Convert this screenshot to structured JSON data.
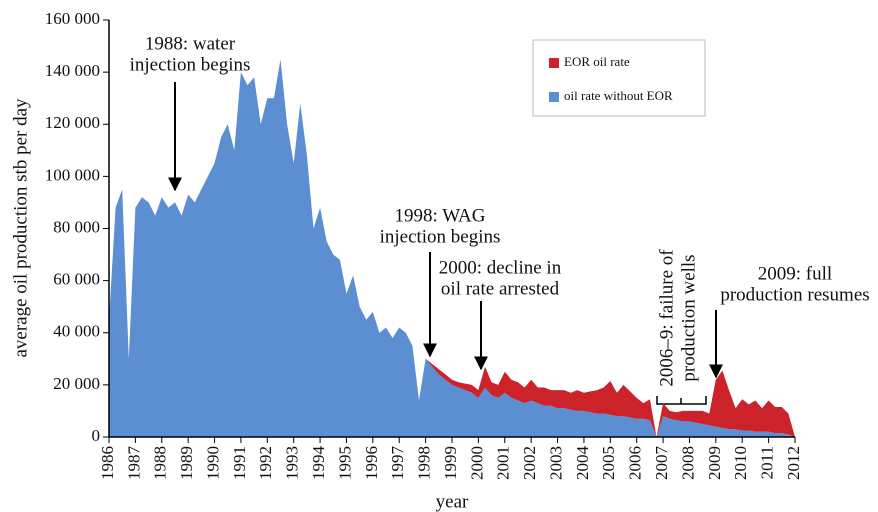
{
  "chart_data": {
    "type": "stacked-area",
    "x_label": "year",
    "y_label": "average oil production stb per day",
    "xlim": [
      1986,
      2012
    ],
    "xticks": [
      1986,
      1987,
      1988,
      1989,
      1990,
      1991,
      1992,
      1993,
      1994,
      1995,
      1996,
      1997,
      1998,
      1999,
      2000,
      2001,
      2002,
      2003,
      2004,
      2005,
      2006,
      2007,
      2008,
      2009,
      2010,
      2011,
      2012
    ],
    "ylim": [
      0,
      160000
    ],
    "yticks": [
      0,
      {
        "value": 20000,
        "label": "20 000"
      },
      {
        "value": 40000,
        "label": "40 000"
      },
      {
        "value": 60000,
        "label": "60 000"
      },
      {
        "value": 80000,
        "label": "80 000"
      },
      {
        "value": 100000,
        "label": "100 000"
      },
      {
        "value": 120000,
        "label": "120 000"
      },
      {
        "value": 140000,
        "label": "140 000"
      },
      {
        "value": 160000,
        "label": "160 000"
      }
    ],
    "grid": false,
    "legend": "upper right",
    "x": [
      1986,
      1986.25,
      1986.5,
      1986.75,
      1987,
      1987.25,
      1987.5,
      1987.75,
      1988,
      1988.25,
      1988.5,
      1988.75,
      1989,
      1989.25,
      1989.5,
      1989.75,
      1990,
      1990.25,
      1990.5,
      1990.75,
      1991,
      1991.25,
      1991.5,
      1991.75,
      1992,
      1992.25,
      1992.5,
      1992.75,
      1993,
      1993.25,
      1993.5,
      1993.75,
      1994,
      1994.25,
      1994.5,
      1994.75,
      1995,
      1995.25,
      1995.5,
      1995.75,
      1996,
      1996.25,
      1996.5,
      1996.75,
      1997,
      1997.25,
      1997.5,
      1997.75,
      1998,
      1998.25,
      1998.5,
      1998.75,
      1999,
      1999.25,
      1999.5,
      1999.75,
      2000,
      2000.25,
      2000.5,
      2000.75,
      2001,
      2001.25,
      2001.5,
      2001.75,
      2002,
      2002.25,
      2002.5,
      2002.75,
      2003,
      2003.25,
      2003.5,
      2003.75,
      2004,
      2004.25,
      2004.5,
      2004.75,
      2005,
      2005.25,
      2005.5,
      2005.75,
      2006,
      2006.25,
      2006.5,
      2006.75,
      2007,
      2007.25,
      2007.5,
      2007.75,
      2008,
      2008.25,
      2008.5,
      2008.75,
      2009,
      2009.25,
      2009.5,
      2009.75,
      2010,
      2010.25,
      2010.5,
      2010.75,
      2011,
      2011.25,
      2011.5,
      2011.75,
      2012
    ],
    "series": [
      {
        "name": "oil rate without EOR",
        "color": "#5b8fd2",
        "values": [
          45000,
          88000,
          95000,
          30000,
          88000,
          92000,
          90000,
          85000,
          92000,
          88000,
          90000,
          85000,
          93000,
          90000,
          95000,
          100000,
          105000,
          115000,
          120000,
          110000,
          140000,
          135000,
          138000,
          120000,
          130000,
          130000,
          145000,
          120000,
          105000,
          128000,
          108000,
          80000,
          88000,
          75000,
          70000,
          68000,
          55000,
          62000,
          50000,
          45000,
          48000,
          40000,
          42000,
          38000,
          42000,
          40000,
          35000,
          14000,
          30000,
          27000,
          24000,
          22000,
          20000,
          19000,
          18000,
          17000,
          15000,
          19000,
          16000,
          15000,
          17000,
          15000,
          14000,
          13000,
          14000,
          13000,
          12000,
          12000,
          11000,
          11000,
          10500,
          10000,
          10000,
          9500,
          9000,
          9000,
          8500,
          8000,
          8000,
          7500,
          7000,
          7000,
          6500,
          0,
          8000,
          7000,
          6500,
          6000,
          6000,
          5500,
          5000,
          4500,
          4000,
          3500,
          3000,
          3000,
          2500,
          2500,
          2000,
          2000,
          2000,
          1500,
          1500,
          1000,
          0
        ]
      },
      {
        "name": "EOR oil rate",
        "color": "#cc2229",
        "values": [
          0,
          0,
          0,
          0,
          0,
          0,
          0,
          0,
          0,
          0,
          0,
          0,
          0,
          0,
          0,
          0,
          0,
          0,
          0,
          0,
          0,
          0,
          0,
          0,
          0,
          0,
          0,
          0,
          0,
          0,
          0,
          0,
          0,
          0,
          0,
          0,
          0,
          0,
          0,
          0,
          0,
          0,
          0,
          0,
          0,
          0,
          0,
          0,
          0,
          1000,
          2000,
          2000,
          2000,
          2000,
          2500,
          3000,
          3000,
          8000,
          5000,
          5000,
          8000,
          7000,
          7000,
          6000,
          8000,
          6000,
          7000,
          6000,
          7000,
          7000,
          6500,
          8000,
          7000,
          8000,
          9000,
          10000,
          13000,
          9000,
          12000,
          10000,
          8000,
          6000,
          8000,
          0,
          5000,
          3000,
          3000,
          4000,
          4000,
          4500,
          5000,
          4500,
          18000,
          22000,
          15000,
          8000,
          12000,
          10000,
          12000,
          9000,
          12000,
          10000,
          10000,
          8000,
          0
        ]
      }
    ],
    "annotations": [
      {
        "lines": [
          "1988: water",
          "injection begins"
        ]
      },
      {
        "lines": [
          "1998: WAG",
          "injection begins"
        ]
      },
      {
        "lines": [
          "2000: decline in",
          "oil rate arrested"
        ]
      },
      {
        "lines": [
          "2006–9: failure of",
          "production wells"
        ]
      },
      {
        "lines": [
          "2009: full",
          "production resumes"
        ]
      }
    ]
  }
}
